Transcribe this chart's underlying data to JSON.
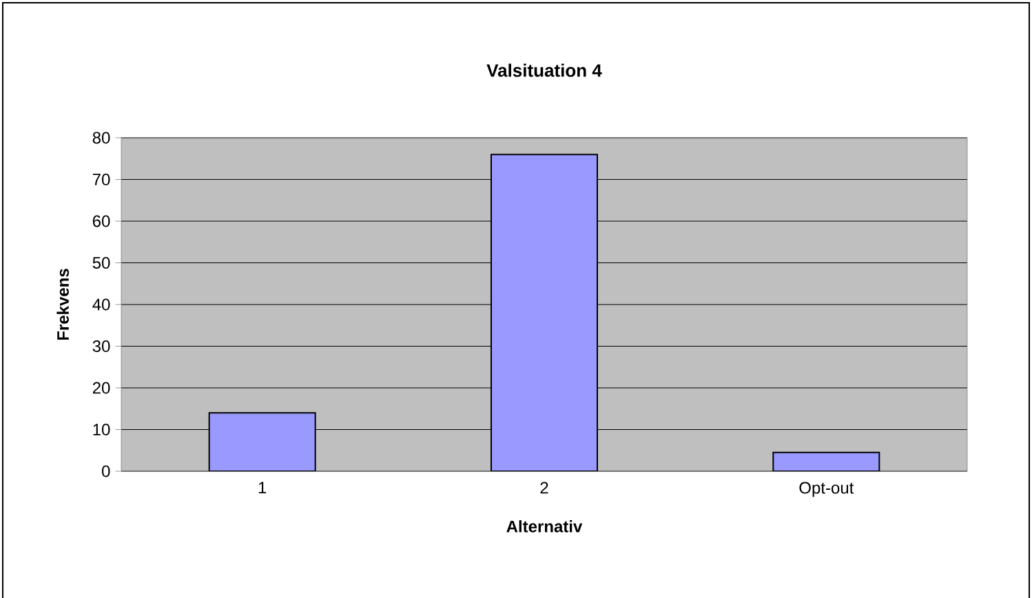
{
  "chart_data": {
    "type": "bar",
    "title": "Valsituation 4",
    "xlabel": "Alternativ",
    "ylabel": "Frekvens",
    "categories": [
      "1",
      "2",
      "Opt-out"
    ],
    "values": [
      14,
      76,
      4.5
    ],
    "color": "#9999ff",
    "ylim": [
      0,
      80
    ],
    "yticks": [
      0,
      10,
      20,
      30,
      40,
      50,
      60,
      70,
      80
    ],
    "grid": "y"
  }
}
